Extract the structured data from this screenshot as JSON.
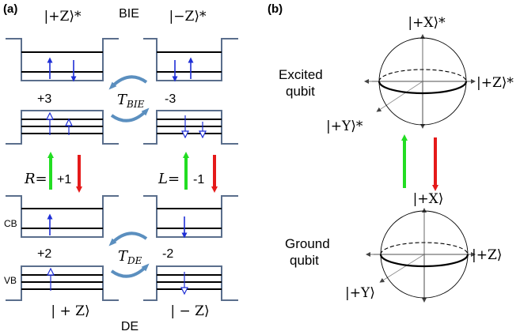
{
  "panel_a": {
    "label": "(a)",
    "top_title": "BIE",
    "bottom_title": "DE",
    "ket_plus_z_star": "|+Z⟩*",
    "ket_minus_z_star": "|−Z⟩*",
    "ket_plus_z": "| + Z⟩",
    "ket_minus_z": "| − Z⟩",
    "val_plus3": "+3",
    "val_minus3": "-3",
    "val_plus2": "+2",
    "val_minus2": "-2",
    "r_label": "R=",
    "r_value": "+1",
    "l_label": "L=",
    "l_value": "-1",
    "t_bie": "T",
    "t_bie_sub": "BIE",
    "t_de": "T",
    "t_de_sub": "DE",
    "cb": "CB",
    "vb": "VB"
  },
  "panel_b": {
    "label": "(b)",
    "excited_line1": "Excited",
    "excited_line2": "qubit",
    "ground_line1": "Ground",
    "ground_line2": "qubit",
    "ket_x_star": "|+X⟩*",
    "ket_z_star": "|+Z⟩*",
    "ket_y_star": "|+Y⟩*",
    "ket_x": "|+X⟩",
    "ket_z": "|+Z⟩",
    "ket_y": "|+Y⟩"
  },
  "colors": {
    "up_arrow": "#22dd22",
    "down_arrow": "#e51a1a",
    "spin": "#1f2fd6",
    "well": "#5a6e8c",
    "cycle": "#5b8fbf"
  }
}
